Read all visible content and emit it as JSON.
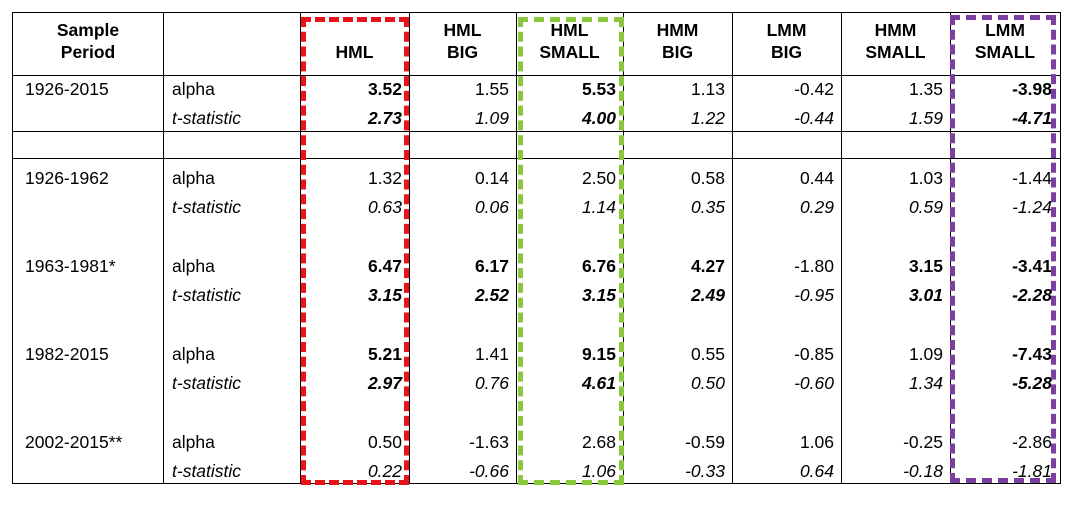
{
  "headers": {
    "sample_period": [
      "Sample",
      "Period"
    ],
    "blank": "",
    "hml": [
      "",
      "HML"
    ],
    "hml_big": [
      "HML",
      "BIG"
    ],
    "hml_small": [
      "HML",
      "SMALL"
    ],
    "hmm_big": [
      "HMM",
      "BIG"
    ],
    "lmm_big": [
      "LMM",
      "BIG"
    ],
    "hmm_small": [
      "HMM",
      "SMALL"
    ],
    "lmm_small": [
      "LMM",
      "SMALL"
    ]
  },
  "rows": [
    {
      "period": "1926-2015",
      "stat": "alpha",
      "italic": false,
      "values": [
        "3.52",
        "1.55",
        "5.53",
        "1.13",
        "-0.42",
        "1.35",
        "-3.98"
      ],
      "bold": [
        true,
        false,
        true,
        false,
        false,
        false,
        true
      ]
    },
    {
      "period": "",
      "stat": "t-statistic",
      "italic": true,
      "values": [
        "2.73",
        "1.09",
        "4.00",
        "1.22",
        "-0.44",
        "1.59",
        "-4.71"
      ],
      "bold": [
        true,
        false,
        true,
        false,
        false,
        false,
        true
      ]
    },
    {
      "period": "1926-1962",
      "stat": "alpha",
      "italic": false,
      "values": [
        "1.32",
        "0.14",
        "2.50",
        "0.58",
        "0.44",
        "1.03",
        "-1.44"
      ],
      "bold": [
        false,
        false,
        false,
        false,
        false,
        false,
        false
      ]
    },
    {
      "period": "",
      "stat": "t-statistic",
      "italic": true,
      "values": [
        "0.63",
        "0.06",
        "1.14",
        "0.35",
        "0.29",
        "0.59",
        "-1.24"
      ],
      "bold": [
        false,
        false,
        false,
        false,
        false,
        false,
        false
      ]
    },
    {
      "period": "1963-1981*",
      "stat": "alpha",
      "italic": false,
      "values": [
        "6.47",
        "6.17",
        "6.76",
        "4.27",
        "-1.80",
        "3.15",
        "-3.41"
      ],
      "bold": [
        true,
        true,
        true,
        true,
        false,
        true,
        true
      ]
    },
    {
      "period": "",
      "stat": "t-statistic",
      "italic": true,
      "values": [
        "3.15",
        "2.52",
        "3.15",
        "2.49",
        "-0.95",
        "3.01",
        "-2.28"
      ],
      "bold": [
        true,
        true,
        true,
        true,
        false,
        true,
        true
      ]
    },
    {
      "period": "1982-2015",
      "stat": "alpha",
      "italic": false,
      "values": [
        "5.21",
        "1.41",
        "9.15",
        "0.55",
        "-0.85",
        "1.09",
        "-7.43"
      ],
      "bold": [
        true,
        false,
        true,
        false,
        false,
        false,
        true
      ]
    },
    {
      "period": "",
      "stat": "t-statistic",
      "italic": true,
      "values": [
        "2.97",
        "0.76",
        "4.61",
        "0.50",
        "-0.60",
        "1.34",
        "-5.28"
      ],
      "bold": [
        true,
        false,
        true,
        false,
        false,
        false,
        true
      ]
    },
    {
      "period": "2002-2015**",
      "stat": "alpha",
      "italic": false,
      "values": [
        "0.50",
        "-1.63",
        "2.68",
        "-0.59",
        "1.06",
        "-0.25",
        "-2.86"
      ],
      "bold": [
        false,
        false,
        false,
        false,
        false,
        false,
        false
      ]
    },
    {
      "period": "",
      "stat": "t-statistic",
      "italic": true,
      "values": [
        "0.22",
        "-0.66",
        "1.06",
        "-0.33",
        "0.64",
        "-0.18",
        "-1.81"
      ],
      "bold": [
        false,
        false,
        false,
        false,
        false,
        false,
        false
      ]
    }
  ],
  "highlight_colors": {
    "hml": "#e8141a",
    "hml_small": "#8cc63f",
    "lmm_small": "#7b3fa0"
  }
}
